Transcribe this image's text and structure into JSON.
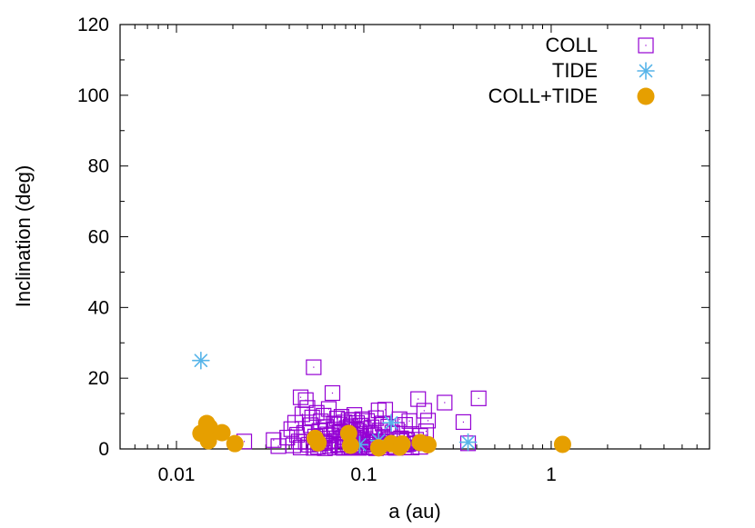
{
  "chart_data": {
    "type": "scatter",
    "title": "",
    "xlabel": "a (au)",
    "ylabel": "Inclination (deg)",
    "xscale": "log",
    "xlim": [
      0.005,
      7
    ],
    "ylim": [
      0,
      120
    ],
    "x_ticks": [
      {
        "value": 0.01,
        "label": "0.01"
      },
      {
        "value": 0.1,
        "label": "0.1"
      },
      {
        "value": 1,
        "label": "1"
      }
    ],
    "y_ticks": [
      {
        "value": 0,
        "label": "0"
      },
      {
        "value": 20,
        "label": "20"
      },
      {
        "value": 40,
        "label": "40"
      },
      {
        "value": 60,
        "label": "60"
      },
      {
        "value": 80,
        "label": "80"
      },
      {
        "value": 100,
        "label": "100"
      },
      {
        "value": 120,
        "label": "120"
      }
    ],
    "grid": false,
    "legend_position": "top-right",
    "series": [
      {
        "name": "COLL",
        "marker": "open-square",
        "color": "#9400d3",
        "points": [
          [
            0.054,
            23.1
          ],
          [
            0.046,
            14.6
          ],
          [
            0.049,
            13.8
          ],
          [
            0.068,
            15.8
          ],
          [
            0.087,
            8.1
          ],
          [
            0.12,
            10.9
          ],
          [
            0.13,
            11.1
          ],
          [
            0.155,
            8.4
          ],
          [
            0.175,
            7.9
          ],
          [
            0.195,
            14.1
          ],
          [
            0.21,
            10.8
          ],
          [
            0.22,
            8.0
          ],
          [
            0.27,
            13.1
          ],
          [
            0.34,
            7.6
          ],
          [
            0.41,
            14.3
          ],
          [
            0.36,
            1.6
          ],
          [
            0.023,
            2.1
          ],
          [
            0.033,
            2.5
          ],
          [
            0.035,
            0.8
          ],
          [
            0.039,
            3.2
          ],
          [
            0.041,
            5.6
          ],
          [
            0.043,
            7.4
          ],
          [
            0.045,
            2.1
          ],
          [
            0.047,
            9.8
          ],
          [
            0.048,
            4.5
          ],
          [
            0.05,
            11.6
          ],
          [
            0.051,
            1.2
          ],
          [
            0.052,
            6.7
          ],
          [
            0.053,
            8.9
          ],
          [
            0.055,
            3.5
          ],
          [
            0.056,
            10.2
          ],
          [
            0.057,
            0.6
          ],
          [
            0.058,
            5.1
          ],
          [
            0.059,
            7.8
          ],
          [
            0.06,
            2.9
          ],
          [
            0.061,
            9.4
          ],
          [
            0.062,
            1.7
          ],
          [
            0.063,
            6.2
          ],
          [
            0.064,
            4.1
          ],
          [
            0.065,
            11.3
          ],
          [
            0.066,
            0.9
          ],
          [
            0.067,
            3.8
          ],
          [
            0.069,
            7.1
          ],
          [
            0.07,
            5.5
          ],
          [
            0.071,
            2.3
          ],
          [
            0.072,
            8.6
          ],
          [
            0.073,
            1.1
          ],
          [
            0.074,
            6.9
          ],
          [
            0.075,
            4.7
          ],
          [
            0.076,
            9.1
          ],
          [
            0.077,
            0.5
          ],
          [
            0.078,
            3.3
          ],
          [
            0.079,
            7.5
          ],
          [
            0.08,
            2.6
          ],
          [
            0.081,
            5.9
          ],
          [
            0.082,
            1.4
          ],
          [
            0.083,
            8.2
          ],
          [
            0.084,
            4.3
          ],
          [
            0.085,
            6.4
          ],
          [
            0.086,
            0.7
          ],
          [
            0.088,
            3.1
          ],
          [
            0.089,
            9.6
          ],
          [
            0.09,
            1.9
          ],
          [
            0.091,
            5.3
          ],
          [
            0.092,
            7.3
          ],
          [
            0.093,
            2.4
          ],
          [
            0.094,
            4.9
          ],
          [
            0.095,
            0.8
          ],
          [
            0.096,
            6.6
          ],
          [
            0.097,
            3.6
          ],
          [
            0.098,
            8.4
          ],
          [
            0.099,
            1.3
          ],
          [
            0.1,
            5.7
          ],
          [
            0.102,
            2.8
          ],
          [
            0.104,
            7.9
          ],
          [
            0.106,
            0.6
          ],
          [
            0.108,
            4.4
          ],
          [
            0.11,
            6.1
          ],
          [
            0.112,
            1.8
          ],
          [
            0.114,
            3.9
          ],
          [
            0.116,
            8.7
          ],
          [
            0.118,
            2.2
          ],
          [
            0.122,
            5.2
          ],
          [
            0.124,
            0.9
          ],
          [
            0.126,
            7.2
          ],
          [
            0.128,
            3.4
          ],
          [
            0.132,
            1.5
          ],
          [
            0.135,
            6.3
          ],
          [
            0.138,
            2.7
          ],
          [
            0.142,
            4.6
          ],
          [
            0.146,
            0.7
          ],
          [
            0.15,
            5.4
          ],
          [
            0.158,
            3.0
          ],
          [
            0.162,
            1.2
          ],
          [
            0.166,
            6.8
          ],
          [
            0.17,
            2.5
          ],
          [
            0.18,
            4.2
          ],
          [
            0.19,
            1.6
          ],
          [
            0.2,
            3.7
          ],
          [
            0.215,
            5.0
          ],
          [
            0.042,
            1.0
          ],
          [
            0.044,
            4.0
          ],
          [
            0.046,
            0.4
          ],
          [
            0.049,
            2.0
          ],
          [
            0.054,
            0.3
          ],
          [
            0.058,
            1.5
          ],
          [
            0.062,
            0.2
          ],
          [
            0.066,
            2.1
          ],
          [
            0.07,
            0.4
          ],
          [
            0.074,
            1.3
          ],
          [
            0.078,
            0.3
          ],
          [
            0.082,
            2.4
          ],
          [
            0.086,
            0.5
          ],
          [
            0.09,
            1.1
          ],
          [
            0.094,
            0.3
          ],
          [
            0.098,
            2.3
          ],
          [
            0.104,
            0.4
          ],
          [
            0.11,
            1.2
          ],
          [
            0.116,
            0.2
          ],
          [
            0.124,
            2.0
          ],
          [
            0.132,
            0.4
          ],
          [
            0.14,
            1.3
          ],
          [
            0.148,
            0.3
          ],
          [
            0.156,
            2.2
          ],
          [
            0.164,
            0.5
          ],
          [
            0.172,
            1.4
          ],
          [
            0.18,
            0.4
          ],
          [
            0.19,
            2.6
          ],
          [
            0.2,
            0.6
          ],
          [
            0.2,
            1.8
          ]
        ]
      },
      {
        "name": "TIDE",
        "marker": "asterisk",
        "color": "#56b4e9",
        "points": [
          [
            0.0135,
            25.0
          ],
          [
            0.14,
            7.4
          ],
          [
            0.36,
            1.9
          ],
          [
            0.095,
            1.2
          ],
          [
            0.12,
            2.4
          ]
        ]
      },
      {
        "name": "COLL+TIDE",
        "marker": "filled-circle",
        "color": "#e69f00",
        "points": [
          [
            0.0135,
            4.4
          ],
          [
            0.0145,
            7.2
          ],
          [
            0.015,
            6.1
          ],
          [
            0.0148,
            2.3
          ],
          [
            0.0175,
            4.6
          ],
          [
            0.0205,
            1.5
          ],
          [
            0.055,
            3.0
          ],
          [
            0.057,
            1.7
          ],
          [
            0.083,
            4.4
          ],
          [
            0.085,
            1.0
          ],
          [
            0.12,
            0.3
          ],
          [
            0.14,
            1.5
          ],
          [
            0.155,
            0.5
          ],
          [
            0.16,
            1.4
          ],
          [
            0.2,
            1.8
          ],
          [
            0.22,
            1.2
          ],
          [
            1.15,
            1.3
          ]
        ]
      }
    ]
  }
}
